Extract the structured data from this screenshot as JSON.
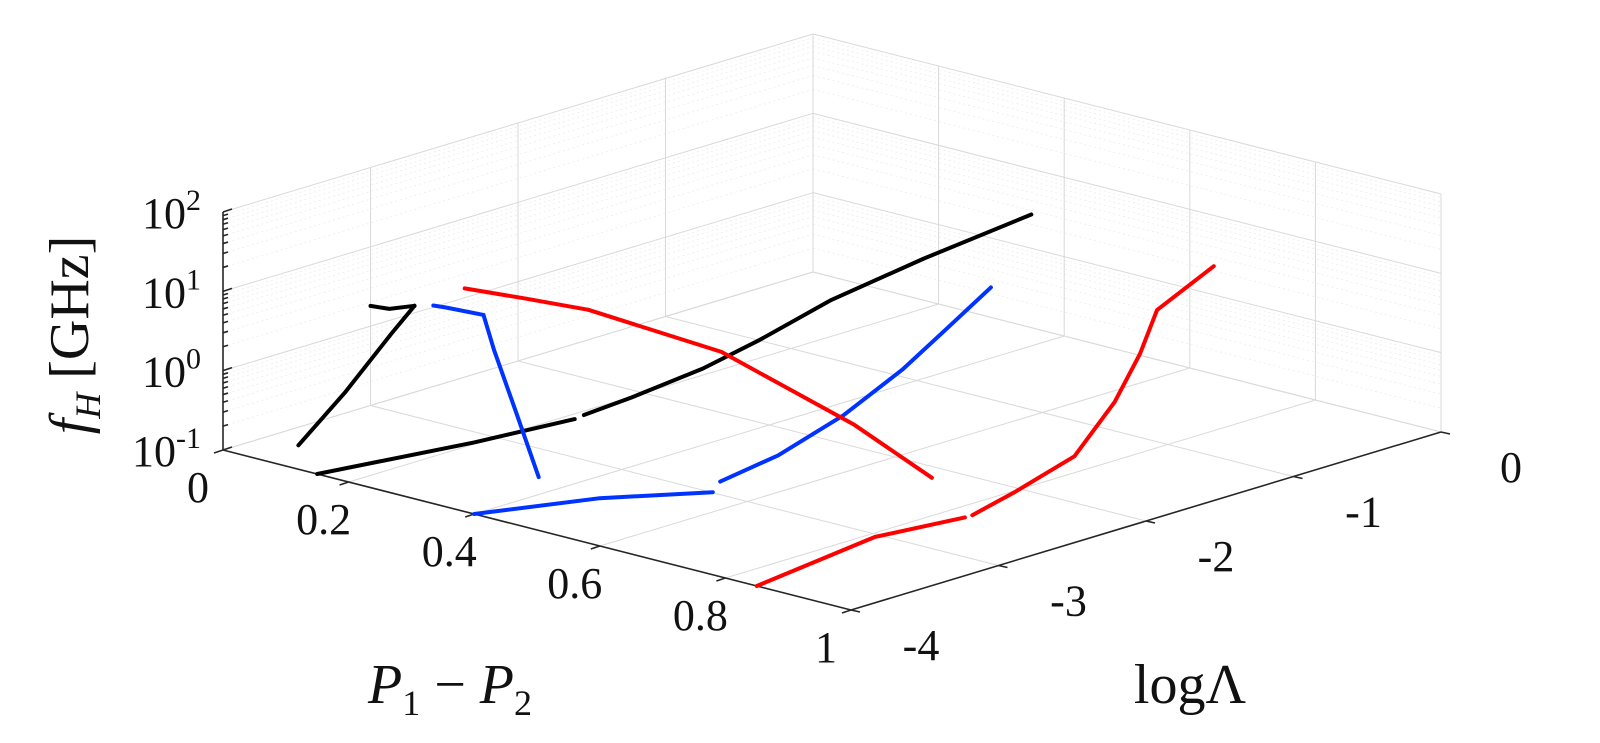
{
  "chart_data": {
    "type": "line3d",
    "axes": {
      "x": {
        "label_parts": [
          "P",
          "1",
          " − ",
          "P",
          "2"
        ],
        "range": [
          0,
          1
        ],
        "ticks": [
          "0",
          "0.2",
          "0.4",
          "0.6",
          "0.8",
          "1"
        ]
      },
      "y": {
        "label_parts": [
          "log",
          "Λ"
        ],
        "range": [
          -4,
          0
        ],
        "ticks": [
          "-4",
          "-3",
          "-2",
          "-1",
          "0"
        ]
      },
      "z": {
        "label_parts": [
          "f",
          "H",
          "  [GHz]"
        ],
        "scale": "log",
        "range": [
          0.1,
          100
        ],
        "ticks": [
          {
            "base": "10",
            "exp": "-1"
          },
          {
            "base": "10",
            "exp": "0"
          },
          {
            "base": "10",
            "exp": "1"
          },
          {
            "base": "10",
            "exp": "2"
          }
        ]
      }
    },
    "grid": true,
    "series": [
      {
        "color": "#000000",
        "segments": [
          {
            "x": [
              0.12,
              0.1,
              0.08,
              0.07
            ],
            "y": [
              -4,
              -3.6,
              -3.2,
              -3.0
            ],
            "z": [
              0.2,
              0.5,
              1.5,
              2.5
            ]
          },
          {
            "x": [
              0.07,
              0.03,
              0.0
            ],
            "y": [
              -3.0,
              -3.0,
              -3.0
            ],
            "z": [
              2.5,
              1.9,
              1.8
            ]
          },
          {
            "x": [
              0.15,
              0.4,
              0.56
            ],
            "y": [
              -4,
              -4,
              -4
            ],
            "z": [
              0.1,
              0.8,
              3.3
            ]
          },
          {
            "x": [
              0.57,
              0.58,
              0.6,
              0.62,
              0.64,
              0.67,
              0.7
            ],
            "y": [
              -3.98,
              -3.7,
              -3.3,
              -3.0,
              -2.6,
              -2.1,
              -1.5
            ],
            "z": [
              3.8,
              4.6,
              7,
              12,
              25,
              50,
              95
            ]
          }
        ]
      },
      {
        "color": "#0033ff",
        "segments": [
          {
            "x": [
              0.35,
              0.29,
              0.22,
              0.18
            ],
            "y": [
              -3.35,
              -3.25,
              -3.1,
              -3.0
            ],
            "z": [
              0.1,
              0.45,
              1.6,
              3.2
            ]
          },
          {
            "x": [
              0.18,
              0.12,
              0.1
            ],
            "y": [
              -3.0,
              -3.0,
              -3.0
            ],
            "z": [
              3.2,
              3.0,
              2.9
            ]
          },
          {
            "x": [
              0.4,
              0.6,
              0.78
            ],
            "y": [
              -4,
              -4,
              -4
            ],
            "z": [
              0.1,
              0.4,
              1.1
            ]
          },
          {
            "x": [
              0.78,
              0.79,
              0.8,
              0.8,
              0.8,
              0.8
            ],
            "y": [
              -3.95,
              -3.6,
              -3.2,
              -2.8,
              -2.5,
              -2.2
            ],
            "z": [
              1.4,
              2.0,
              4.0,
              9,
              20,
              45
            ]
          }
        ]
      },
      {
        "color": "#ff0000",
        "segments": [
          {
            "x": [
              0.3,
              0.5,
              0.7,
              0.8
            ],
            "y": [
              -2.8,
              -2.75,
              -2.7,
              -2.6
            ],
            "z": [
              5.0,
              3.5,
              1.0,
              0.3
            ]
          },
          {
            "x": [
              0.3,
              0.22,
              0.15
            ],
            "y": [
              -2.8,
              -2.9,
              -3.0
            ],
            "z": [
              5.0,
              5.5,
              6.0
            ]
          },
          {
            "x": [
              0.85,
              0.92,
              0.97
            ],
            "y": [
              -4,
              -3.5,
              -3.1
            ],
            "z": [
              0.1,
              0.3,
              0.4
            ]
          },
          {
            "x": [
              0.97,
              0.98,
              0.98,
              0.95,
              0.92,
              0.9,
              0.92
            ],
            "y": [
              -3.05,
              -2.8,
              -2.4,
              -2.0,
              -1.7,
              -1.5,
              -1.2
            ],
            "z": [
              0.4,
              0.6,
              1.0,
              2.5,
              6.0,
              15,
              40
            ]
          }
        ]
      }
    ]
  }
}
